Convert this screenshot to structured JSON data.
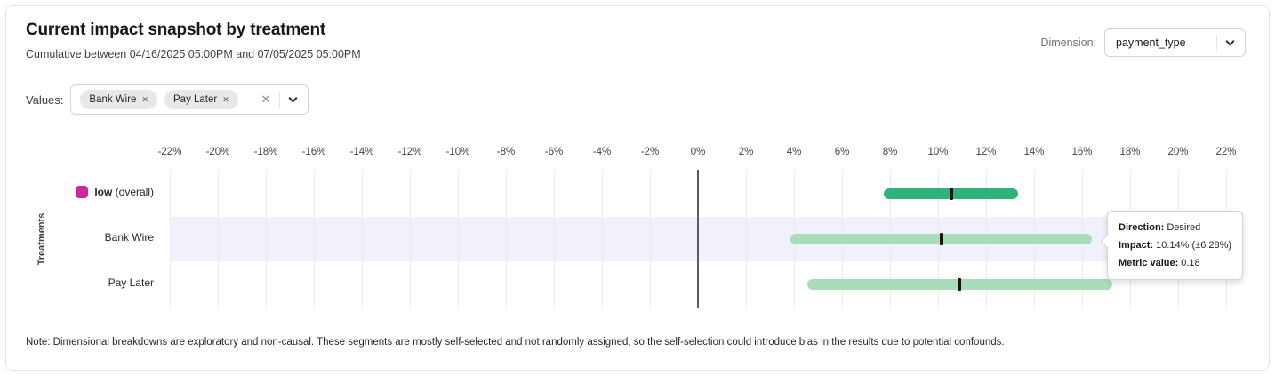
{
  "header": {
    "title": "Current impact snapshot by treatment",
    "subtitle": "Cumulative between 04/16/2025 05:00PM and 07/05/2025 05:00PM",
    "dimension_label": "Dimension:",
    "dimension_value": "payment_type"
  },
  "filters": {
    "values_label": "Values:",
    "chips": [
      {
        "label": "Bank Wire"
      },
      {
        "label": "Pay Later"
      }
    ]
  },
  "icons": {
    "close": "✕"
  },
  "chart_data": {
    "type": "bar",
    "subtype": "horizontal_range_with_point_marker",
    "title": "Current impact snapshot by treatment",
    "ylabel": "Treatments",
    "xlabel": "",
    "x_axis": {
      "min": -22,
      "max": 22,
      "step": 2,
      "unit": "%",
      "tick_labels": [
        "-22%",
        "-20%",
        "-18%",
        "-16%",
        "-14%",
        "-12%",
        "-10%",
        "-8%",
        "-6%",
        "-4%",
        "-2%",
        "0%",
        "2%",
        "4%",
        "6%",
        "8%",
        "10%",
        "12%",
        "14%",
        "16%",
        "18%",
        "20%",
        "22%"
      ]
    },
    "grid": true,
    "zero_line": true,
    "rows": [
      {
        "label": "low",
        "label_suffix": " (overall)",
        "swatch_color": "#ce26a0",
        "impact_pct": 10.55,
        "ci_low_pct": 7.75,
        "ci_high_pct": 13.35,
        "bar_color": "#2fb37c",
        "highlighted": false
      },
      {
        "label": "Bank Wire",
        "impact_pct": 10.14,
        "ci_low_pct": 3.86,
        "ci_high_pct": 16.42,
        "bar_color": "#a9dcb9",
        "highlighted": true
      },
      {
        "label": "Pay Later",
        "impact_pct": 10.9,
        "ci_low_pct": 4.55,
        "ci_high_pct": 17.25,
        "bar_color": "#a9dcb9",
        "highlighted": false
      }
    ]
  },
  "tooltip": {
    "direction_label": "Direction:",
    "direction_value": "Desired",
    "impact_label": "Impact:",
    "impact_value": "10.14% (±6.28%)",
    "metric_label": "Metric value:",
    "metric_value": "0.18"
  },
  "note": "Note: Dimensional breakdowns are exploratory and non-causal. These segments are mostly self-selected and not randomly assigned, so the self-selection could introduce bias in the results due to potential confounds.",
  "colors": {
    "accent_magenta": "#ce26a0",
    "bar_green_dark": "#2fb37c",
    "bar_green_light": "#a9dcb9",
    "row_highlight": "#f0f1fb",
    "marker_black": "#151518"
  }
}
